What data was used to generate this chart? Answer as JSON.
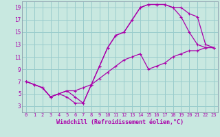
{
  "xlabel": "Windchill (Refroidissement éolien,°C)",
  "bg_color": "#c8e8e0",
  "line_color": "#aa00aa",
  "grid_color": "#99cccc",
  "spine_color": "#8899aa",
  "xlim": [
    -0.5,
    23.5
  ],
  "ylim": [
    2,
    20
  ],
  "xticks": [
    0,
    1,
    2,
    3,
    4,
    5,
    6,
    7,
    8,
    9,
    10,
    11,
    12,
    13,
    14,
    15,
    16,
    17,
    18,
    19,
    20,
    21,
    22,
    23
  ],
  "yticks": [
    3,
    5,
    7,
    9,
    11,
    13,
    15,
    17,
    19
  ],
  "line1_x": [
    0,
    1,
    2,
    3,
    4,
    5,
    6,
    7,
    8,
    9,
    10,
    11,
    12,
    13,
    14,
    15,
    16,
    17,
    18,
    19,
    20,
    21,
    22,
    23
  ],
  "line1_y": [
    7,
    6.5,
    6,
    4.5,
    5,
    4.5,
    3.5,
    3.5,
    6.5,
    9.5,
    12.5,
    14.5,
    15,
    17,
    19,
    19.5,
    19.5,
    19.5,
    19,
    17.5,
    15,
    13,
    12.5,
    12.5
  ],
  "line2_x": [
    0,
    1,
    2,
    3,
    4,
    5,
    6,
    7,
    8,
    9,
    10,
    11,
    12,
    13,
    14,
    15,
    16,
    17,
    18,
    19,
    20,
    21,
    22,
    23
  ],
  "line2_y": [
    7,
    6.5,
    6,
    4.5,
    5,
    5.5,
    5.5,
    6,
    6.5,
    7.5,
    8.5,
    9.5,
    10.5,
    11,
    11.5,
    9.0,
    9.5,
    10,
    11,
    11.5,
    12,
    12,
    12.5,
    12.5
  ],
  "line3_x": [
    0,
    2,
    3,
    4,
    5,
    6,
    7,
    8,
    9,
    10,
    11,
    12,
    13,
    14,
    15,
    16,
    17,
    18,
    19,
    20,
    21,
    22,
    23
  ],
  "line3_y": [
    7,
    6,
    4.5,
    5,
    5.5,
    4.5,
    3.5,
    6.5,
    9.5,
    12.5,
    14.5,
    15,
    17,
    19,
    19.5,
    19.5,
    19.5,
    19,
    19,
    18,
    17.5,
    13,
    12.5
  ]
}
